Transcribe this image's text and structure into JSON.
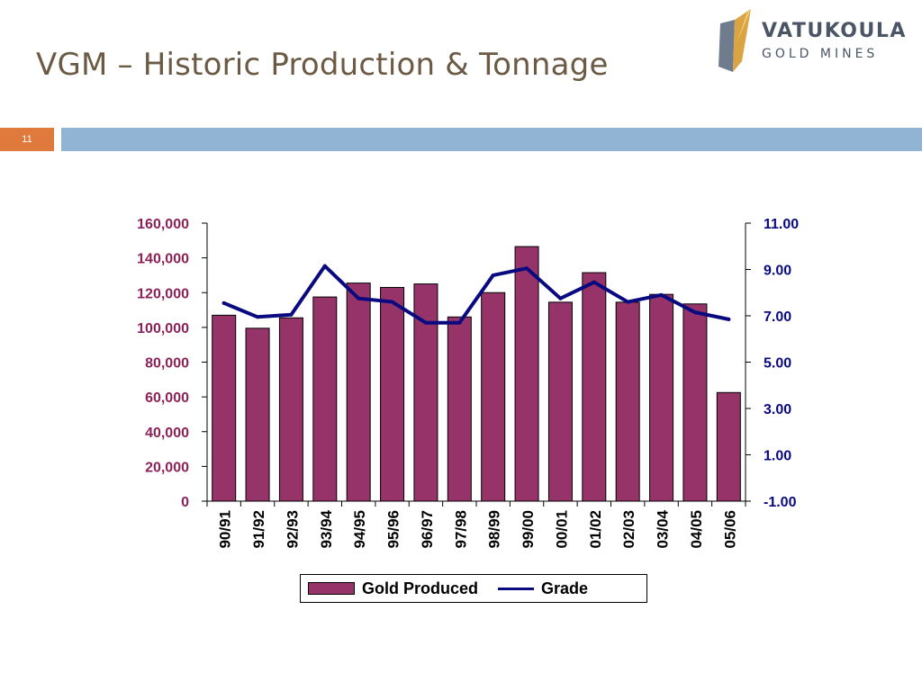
{
  "slide": {
    "title": "VGM – Historic Production & Tonnage",
    "page_number": "11"
  },
  "logo": {
    "line1": "VATUKOULA",
    "line2": "GOLD MINES",
    "colors": {
      "gold": "#d9a441",
      "slate": "#4a5566"
    }
  },
  "colors": {
    "bar": "#96346a",
    "line": "#0a0a80",
    "left_axis_text": "#8b2257",
    "right_axis_text": "#0a0a80",
    "page_box": "#e07a3c",
    "header_bar": "#92b4d4"
  },
  "chart_data": {
    "type": "bar",
    "categories": [
      "90/91",
      "91/92",
      "92/93",
      "93/94",
      "94/95",
      "95/96",
      "96/97",
      "97/98",
      "98/99",
      "99/00",
      "00/01",
      "01/02",
      "02/03",
      "03/04",
      "04/05",
      "05/06"
    ],
    "series": [
      {
        "name": "Gold Produced",
        "type": "bar",
        "axis": "left",
        "values": [
          107000,
          99500,
          105500,
          117500,
          125500,
          123000,
          125000,
          106000,
          120000,
          146500,
          114500,
          131500,
          114500,
          119000,
          113500,
          62500
        ]
      },
      {
        "name": "Grade",
        "type": "line",
        "axis": "right",
        "values": [
          7.55,
          6.95,
          7.05,
          9.15,
          7.75,
          7.6,
          6.7,
          6.7,
          8.75,
          9.05,
          7.75,
          8.45,
          7.6,
          7.9,
          7.15,
          6.85
        ]
      }
    ],
    "y_left": {
      "range": [
        0,
        160000
      ],
      "ticks": [
        "0",
        "20,000",
        "40,000",
        "60,000",
        "80,000",
        "100,000",
        "120,000",
        "140,000",
        "160,000"
      ]
    },
    "y_right": {
      "range": [
        -1,
        11
      ],
      "ticks": [
        "-1.00",
        "1.00",
        "3.00",
        "5.00",
        "7.00",
        "9.00",
        "11.00"
      ]
    },
    "grid": false,
    "legend": {
      "position": "bottom",
      "labels": [
        "Gold Produced",
        "Grade"
      ]
    }
  }
}
